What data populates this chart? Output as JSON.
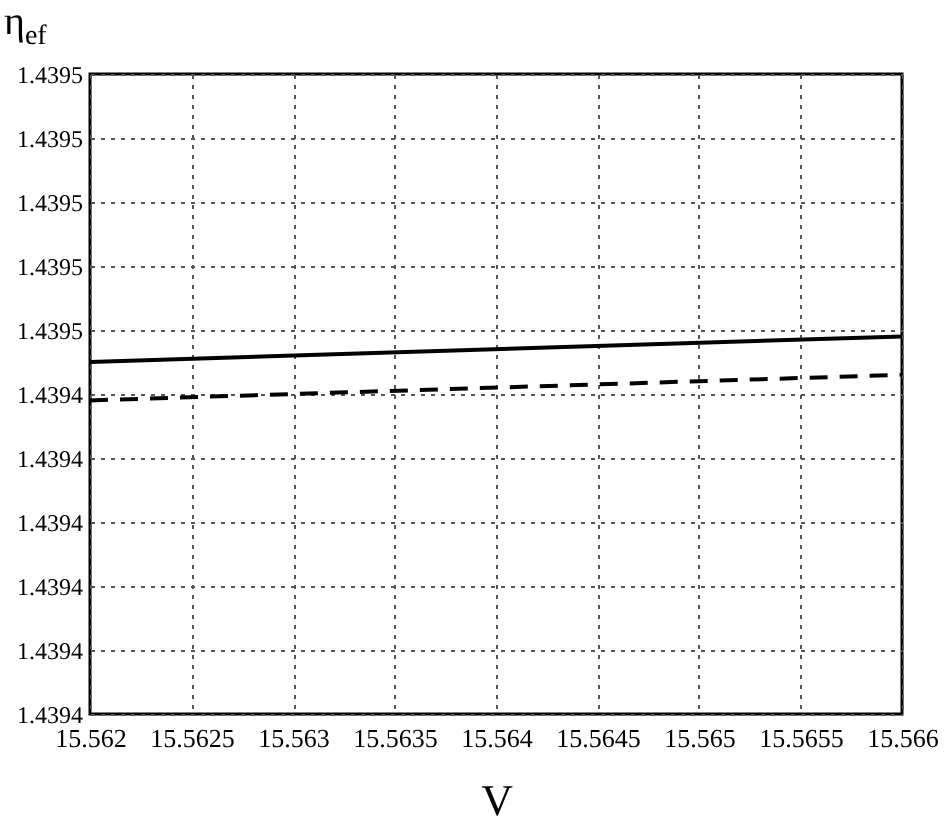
{
  "chart_data": {
    "type": "line",
    "xlabel": "V",
    "ylabel": "η$_{ef}$",
    "xlim": [
      15.562,
      15.566
    ],
    "xticks": [
      15.562,
      15.5625,
      15.563,
      15.5635,
      15.564,
      15.5645,
      15.565,
      15.5655,
      15.566
    ],
    "ylim": [
      1.4394,
      1.4395
    ],
    "yticks": [
      {
        "value": 1.4394,
        "label": "1.4394"
      },
      {
        "value": 1.43941,
        "label": "1.4394"
      },
      {
        "value": 1.43942,
        "label": "1.4394"
      },
      {
        "value": 1.43943,
        "label": "1.4394"
      },
      {
        "value": 1.43944,
        "label": "1.4394"
      },
      {
        "value": 1.43945,
        "label": "1.4394"
      },
      {
        "value": 1.43946,
        "label": "1.4395"
      },
      {
        "value": 1.43947,
        "label": "1.4395"
      },
      {
        "value": 1.43948,
        "label": "1.4395"
      },
      {
        "value": 1.43949,
        "label": "1.4395"
      },
      {
        "value": 1.4395,
        "label": "1.4395"
      }
    ],
    "grid": true,
    "marker": "none",
    "x": [
      15.562,
      15.566
    ],
    "series": [
      {
        "color": "#000000",
        "line_style": "solid",
        "values": [
          1.439455,
          1.439459
        ]
      },
      {
        "color": "#000000",
        "line_style": "dashed",
        "values": [
          1.439449,
          1.439453
        ]
      }
    ]
  }
}
